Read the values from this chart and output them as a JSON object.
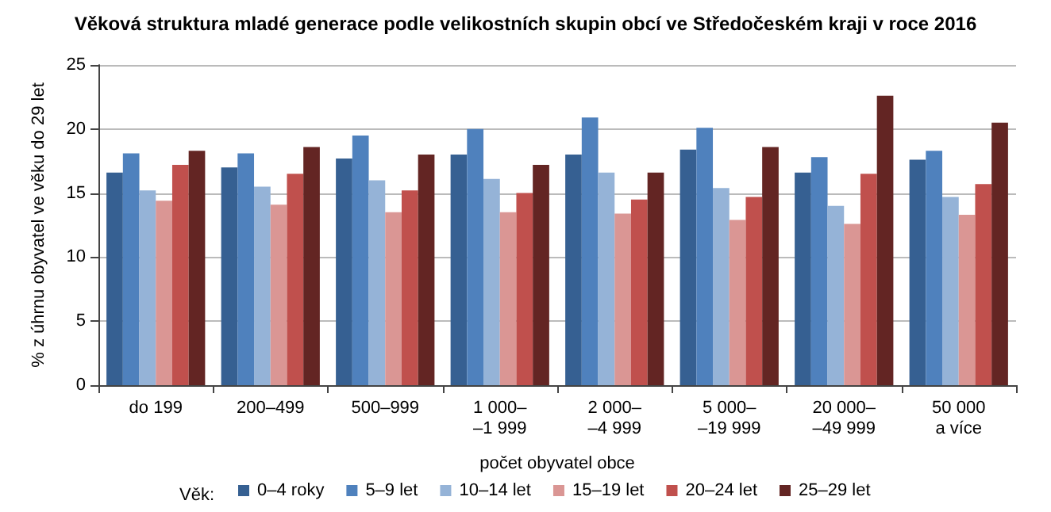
{
  "chart_data": {
    "type": "bar",
    "title": "Věková struktura mladé generace podle velikostních skupin obcí ve Středočeském kraji v roce 2016",
    "xlabel": "počet obyvatel obce",
    "ylabel": "% z úhrnu obyvatel ve věku do 29 let",
    "legend_title": "Věk:",
    "categories": [
      "do 199",
      "200–499",
      "500–999",
      "1 000–\n–1 999",
      "2 000–\n–4 999",
      "5 000–\n–19 999",
      "20 000–\n–49 999",
      "50 000\na více"
    ],
    "series": [
      {
        "name": "0–4 roky",
        "color": "#366092",
        "values": [
          16.6,
          17.0,
          17.7,
          18.0,
          18.0,
          18.4,
          16.6,
          17.6
        ]
      },
      {
        "name": "5–9 let",
        "color": "#4f81bd",
        "values": [
          18.1,
          18.1,
          19.5,
          20.0,
          20.9,
          20.1,
          17.8,
          18.3
        ]
      },
      {
        "name": "10–14 let",
        "color": "#95b3d7",
        "values": [
          15.2,
          15.5,
          16.0,
          16.1,
          16.6,
          15.4,
          14.0,
          14.7
        ]
      },
      {
        "name": "15–19 let",
        "color": "#da9694",
        "values": [
          14.4,
          14.1,
          13.5,
          13.5,
          13.4,
          12.9,
          12.6,
          13.3
        ]
      },
      {
        "name": "20–24 let",
        "color": "#c0504d",
        "values": [
          17.2,
          16.5,
          15.2,
          15.0,
          14.5,
          14.7,
          16.5,
          15.7
        ]
      },
      {
        "name": "25–29 let",
        "color": "#632523",
        "values": [
          18.3,
          18.6,
          18.0,
          17.2,
          16.6,
          18.6,
          22.6,
          20.5
        ]
      }
    ],
    "ylim": [
      0,
      25
    ],
    "yticks": [
      0,
      5,
      10,
      15,
      20,
      25
    ],
    "grid": "y",
    "legend": "bottom"
  }
}
